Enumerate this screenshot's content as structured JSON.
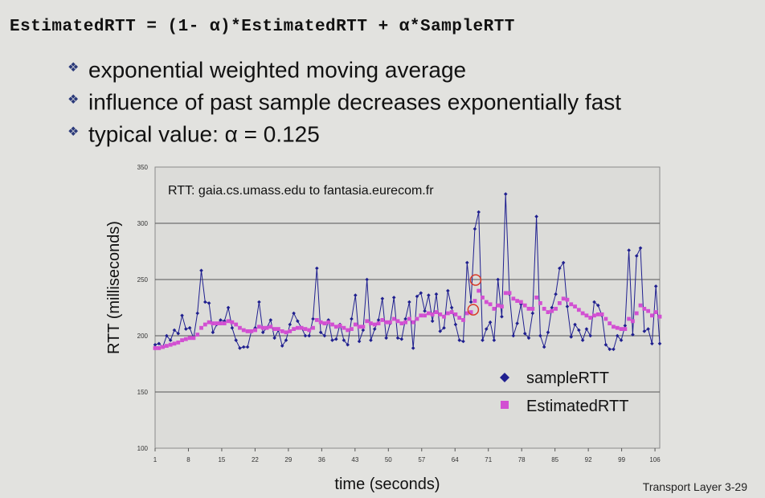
{
  "formula": "EstimatedRTT = (1- α)*EstimatedRTT + α*SampleRTT",
  "bullets": [
    "exponential weighted moving average",
    "influence of past sample decreases exponentially fast",
    "typical value: α  = 0.125"
  ],
  "bullet_icon": "diamond-bullet-icon",
  "footer": "Transport Layer 3-29",
  "chart_data": {
    "type": "line",
    "title": "RTT: gaia.cs.umass.edu to fantasia.eurecom.fr",
    "xlabel": "time (seconds)",
    "ylabel": "RTT (milliseconds)",
    "ylim": [
      100,
      350
    ],
    "yticks": [
      "100",
      "150",
      "200",
      "250",
      "300",
      "350"
    ],
    "xticks": [
      {
        "x": 1,
        "label": "1"
      },
      {
        "x": 8,
        "label": "8"
      },
      {
        "x": 15,
        "label": "15"
      },
      {
        "x": 22,
        "label": "22"
      },
      {
        "x": 29,
        "label": "29"
      },
      {
        "x": 36,
        "label": "36"
      },
      {
        "x": 43,
        "label": "43"
      },
      {
        "x": 50,
        "label": "50"
      },
      {
        "x": 57,
        "label": "57"
      },
      {
        "x": 64,
        "label": "64"
      },
      {
        "x": 71,
        "label": "71"
      },
      {
        "x": 78,
        "label": "78"
      },
      {
        "x": 85,
        "label": "85"
      },
      {
        "x": 92,
        "label": "92"
      },
      {
        "x": 99,
        "label": "99"
      },
      {
        "x": 106,
        "label": "106"
      }
    ],
    "xlim": [
      1,
      107
    ],
    "grid": true,
    "legend_position": "bottom-right",
    "series": [
      {
        "name": "sampleRTT",
        "color": "#1f1f8f",
        "marker": "diamond",
        "values": [
          192,
          193,
          190,
          200,
          196,
          205,
          202,
          218,
          206,
          207,
          198,
          220,
          258,
          230,
          229,
          203,
          210,
          214,
          213,
          225,
          207,
          196,
          189,
          190,
          190,
          204,
          207,
          230,
          203,
          207,
          214,
          198,
          205,
          191,
          196,
          210,
          220,
          213,
          207,
          200,
          200,
          215,
          260,
          203,
          200,
          214,
          196,
          197,
          210,
          196,
          192,
          215,
          236,
          195,
          205,
          250,
          196,
          206,
          214,
          233,
          198,
          211,
          234,
          198,
          197,
          215,
          230,
          189,
          235,
          238,
          222,
          236,
          213,
          237,
          204,
          207,
          240,
          225,
          210,
          196,
          195,
          265,
          230,
          295,
          310,
          196,
          206,
          212,
          196,
          250,
          217,
          326,
          237,
          200,
          211,
          228,
          202,
          198,
          220,
          306,
          200,
          190,
          203,
          225,
          237,
          260,
          265,
          226,
          199,
          210,
          205,
          196,
          206,
          200,
          230,
          227,
          218,
          192,
          188,
          188,
          200,
          196,
          209,
          276,
          201,
          271,
          278,
          204,
          206,
          193,
          244,
          193
        ]
      },
      {
        "name": "EstimatedRTT",
        "color": "#d24fd2",
        "marker": "square",
        "values": [
          189,
          189,
          190,
          191,
          192,
          193,
          194,
          196,
          197,
          198,
          198,
          201,
          207,
          210,
          212,
          211,
          211,
          211,
          211,
          213,
          212,
          210,
          207,
          205,
          204,
          204,
          205,
          208,
          207,
          207,
          208,
          206,
          206,
          204,
          203,
          204,
          206,
          207,
          207,
          206,
          205,
          207,
          214,
          212,
          211,
          212,
          210,
          208,
          209,
          207,
          205,
          206,
          210,
          208,
          208,
          213,
          211,
          210,
          211,
          214,
          212,
          212,
          215,
          213,
          211,
          212,
          215,
          212,
          215,
          218,
          218,
          220,
          219,
          221,
          219,
          217,
          220,
          221,
          219,
          216,
          214,
          220,
          221,
          231,
          240,
          234,
          230,
          228,
          224,
          227,
          226,
          238,
          238,
          233,
          231,
          230,
          227,
          224,
          224,
          234,
          229,
          224,
          221,
          222,
          224,
          229,
          233,
          232,
          228,
          226,
          223,
          220,
          218,
          216,
          218,
          219,
          219,
          215,
          211,
          208,
          207,
          206,
          206,
          215,
          213,
          220,
          227,
          224,
          222,
          218,
          221,
          217
        ]
      }
    ],
    "highlights": [
      {
        "series": "sampleRTT",
        "index": 84
      },
      {
        "series": "EstimatedRTT",
        "index": 84
      },
      {
        "series": "sampleRTT",
        "index": 83
      },
      {
        "series": "EstimatedRTT",
        "index": 83
      }
    ]
  }
}
